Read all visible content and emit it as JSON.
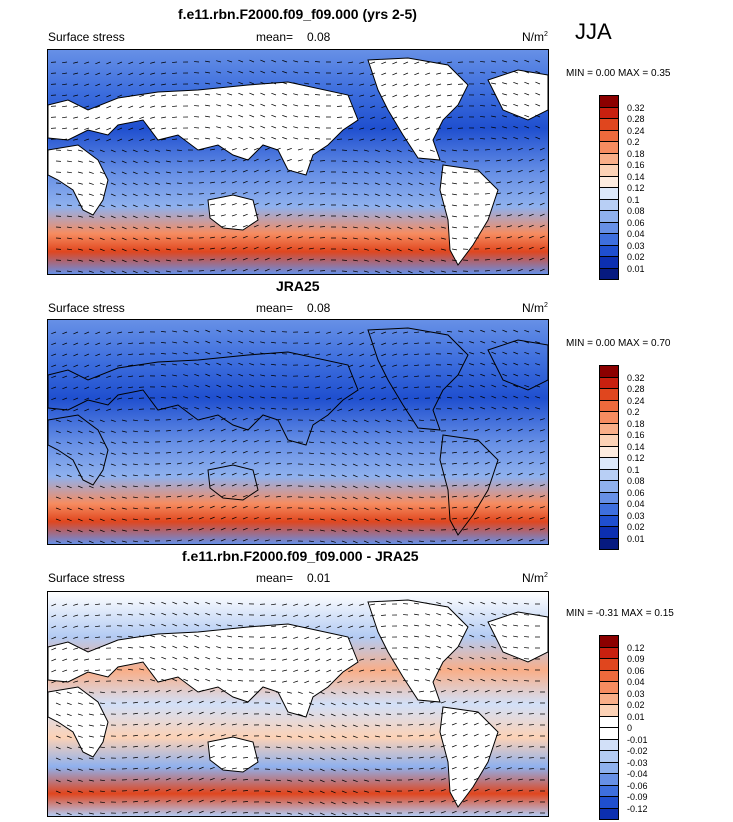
{
  "season": "JJA",
  "panels": [
    {
      "title": "f.e11.rbn.F2000.f09_f09.000 (yrs 2-5)",
      "left_label": "Surface stress",
      "mean_label": "mean=",
      "mean_value": "0.08",
      "units": "N/m",
      "units_exp": "2",
      "stats": "MIN =  0.00 MAX =  0.35",
      "palette": "abs"
    },
    {
      "title": "JRA25",
      "left_label": "Surface stress",
      "mean_label": "mean=",
      "mean_value": "0.08",
      "units": "N/m",
      "units_exp": "2",
      "stats": "MIN =  0.00 MAX =  0.70",
      "palette": "abs"
    },
    {
      "title": "f.e11.rbn.F2000.f09_f09.000 - JRA25",
      "left_label": "Surface stress",
      "mean_label": "mean=",
      "mean_value": "0.01",
      "units": "N/m",
      "units_exp": "2",
      "stats": "MIN = -0.31 MAX =  0.15",
      "palette": "diff"
    }
  ],
  "colorbars": {
    "abs": {
      "labels": [
        "0.32",
        "0.28",
        "0.24",
        "0.2",
        "0.18",
        "0.16",
        "0.14",
        "0.12",
        "0.1",
        "0.08",
        "0.06",
        "0.04",
        "0.03",
        "0.02",
        "0.01"
      ],
      "colors": [
        "#8b0000",
        "#c8200f",
        "#e0461e",
        "#ee6a3c",
        "#f68c60",
        "#f9ae88",
        "#fcd2b6",
        "#fdece0",
        "#dde9fb",
        "#b8cff5",
        "#8fb1ee",
        "#6790e6",
        "#3e6fde",
        "#1f4fcf",
        "#0c2fb0",
        "#061a80"
      ]
    },
    "diff": {
      "labels": [
        "0.12",
        "0.09",
        "0.06",
        "0.04",
        "0.03",
        "0.02",
        "0.01",
        "0",
        "-0.01",
        "-0.02",
        "-0.03",
        "-0.04",
        "-0.06",
        "-0.09",
        "-0.12"
      ],
      "colors": [
        "#8b0000",
        "#c8200f",
        "#e0461e",
        "#ee6a3c",
        "#f68c60",
        "#f9ae88",
        "#fcd2b6",
        "#ffffff",
        "#ffffff",
        "#d2e0f8",
        "#b3cbf3",
        "#8fb1ee",
        "#6790e6",
        "#3e6fde",
        "#1f4fcf",
        "#0c2fb0"
      ]
    }
  }
}
